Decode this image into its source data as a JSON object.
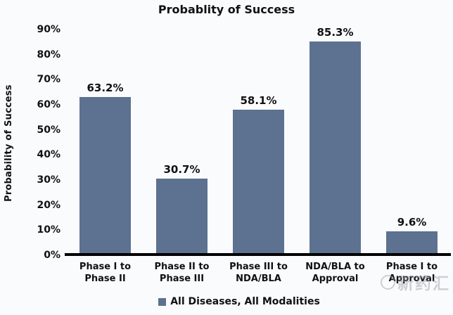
{
  "chart_data": {
    "type": "bar",
    "title": "Probablity of Success",
    "ylabel": "Probability of Success",
    "xlabel": "",
    "categories": [
      "Phase I to\nPhase II",
      "Phase II to\nPhase III",
      "Phase III to\nNDA/BLA",
      "NDA/BLA to\nApproval",
      "Phase I to\nApproval"
    ],
    "series": [
      {
        "name": "All Diseases, All Modalities",
        "values": [
          63.2,
          30.7,
          58.1,
          85.3,
          9.6
        ]
      }
    ],
    "value_labels": [
      "63.2%",
      "30.7%",
      "58.1%",
      "85.3%",
      "9.6%"
    ],
    "ylim": [
      0,
      90
    ],
    "yticks": [
      "0%",
      "10%",
      "20%",
      "30%",
      "40%",
      "50%",
      "60%",
      "70%",
      "80%",
      "90%"
    ],
    "grid": false,
    "legend_position": "bottom",
    "bar_color": "#5d7190"
  },
  "colors": {
    "bar": "#5d7190",
    "axis": "#000000",
    "text": "#111111",
    "background": "#fafbfd"
  },
  "watermark": {
    "text": "新药汇"
  }
}
